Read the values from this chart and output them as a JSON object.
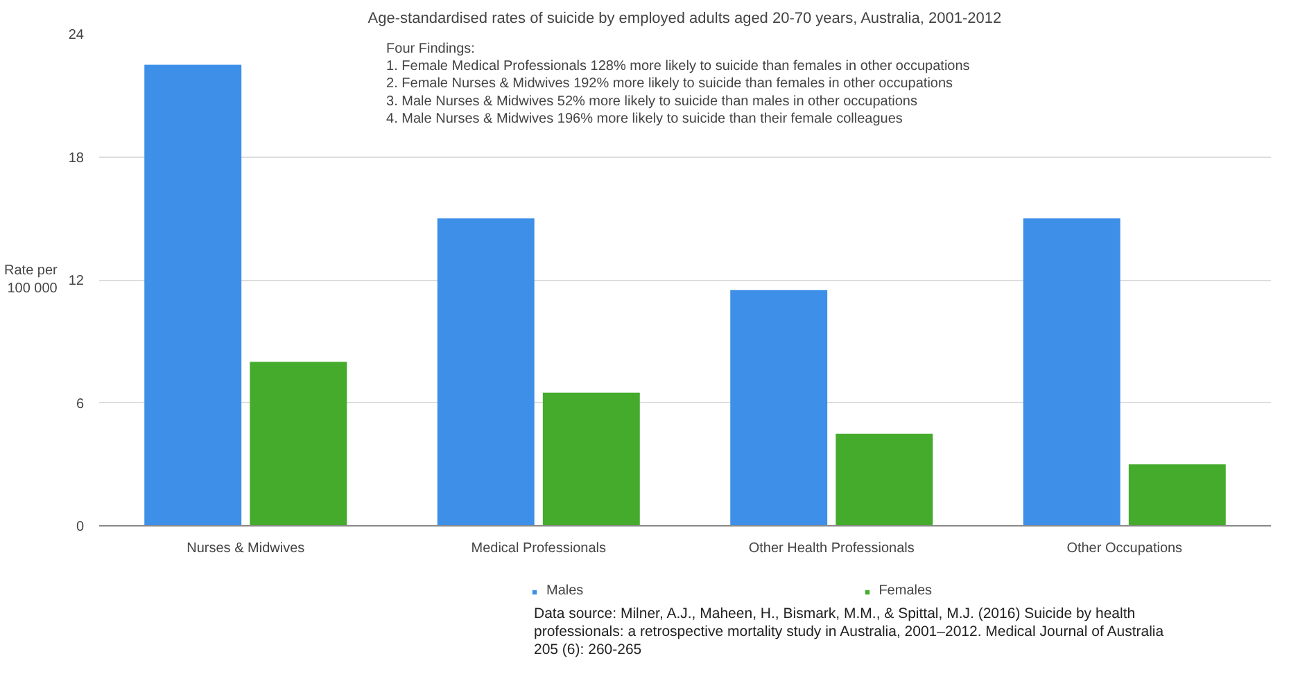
{
  "chart_data": {
    "type": "bar",
    "title": "Age-standardised rates of suicide by employed adults aged 20-70 years, Australia, 2001-2012",
    "ylabel": "Rate per\n100 000",
    "categories": [
      "Nurses & Midwives",
      "Medical Professionals",
      "Other Health Professionals",
      "Other Occupations"
    ],
    "series": [
      {
        "name": "Males",
        "color": "#3d8fe8",
        "values": [
          22.5,
          15,
          11.5,
          15
        ]
      },
      {
        "name": "Females",
        "color": "#44ab2c",
        "values": [
          8,
          6.5,
          4.5,
          3
        ]
      }
    ],
    "ylim": [
      0,
      24
    ],
    "yticks": [
      0,
      6,
      12,
      18,
      24
    ],
    "grid": "y",
    "legend": "bottom",
    "annotations": [
      "Four Findings:\n1. Female Medical Professionals 128% more likely to suicide than females in other occupations\n2. Female Nurses & Midwives 192% more likely to suicide than females in other occupations\n3. Male Nurses & Midwives 52% more likely to suicide than males in other occupations\n4. Male Nurses & Midwives 196% more likely to suicide than their female colleagues",
      "Data source: Milner, A.J., Maheen, H., Bismark, M.M., & Spittal, M.J. (2016) Suicide by health\nprofessionals: a retrospective mortality study in Australia, 2001–2012. Medical Journal of Australia\n205 (6): 260-265"
    ]
  }
}
